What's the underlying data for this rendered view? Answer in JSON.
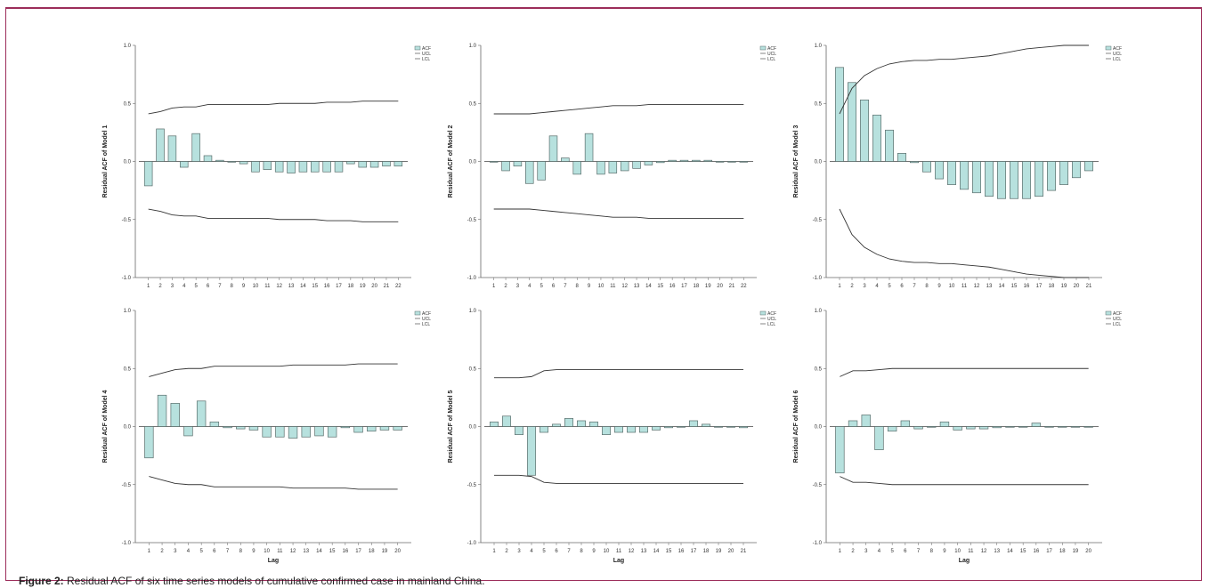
{
  "caption": {
    "label": "Figure 2:",
    "text": " Residual ACF of six time series models of cumulative confirmed case in mainland China."
  },
  "colors": {
    "bar_fill": "#b7e1de",
    "bar_stroke": "#5a6e6c",
    "line": "#333333"
  },
  "chart_data": [
    {
      "type": "bar",
      "ylabel": "Residual ACF of Model 1",
      "xlabel": "",
      "ylim": [
        -1.0,
        1.0
      ],
      "yticks": [
        "1.0",
        "0.5",
        "0.0",
        "-0.5",
        "-1.0"
      ],
      "legend": [
        "ACF",
        "UCL",
        "LCL"
      ],
      "legend_position": "top-right",
      "categories": [
        "1",
        "2",
        "3",
        "4",
        "5",
        "6",
        "7",
        "8",
        "9",
        "10",
        "11",
        "12",
        "13",
        "14",
        "15",
        "16",
        "17",
        "18",
        "19",
        "20",
        "21",
        "22"
      ],
      "series": [
        {
          "name": "ACF",
          "values": [
            -0.21,
            0.28,
            0.22,
            -0.05,
            0.24,
            0.05,
            0.01,
            0.0,
            -0.02,
            -0.09,
            -0.07,
            -0.09,
            -0.1,
            -0.09,
            -0.09,
            -0.09,
            -0.09,
            -0.02,
            -0.05,
            -0.05,
            -0.04,
            -0.04
          ]
        },
        {
          "name": "UCL",
          "values": [
            0.41,
            0.43,
            0.46,
            0.47,
            0.47,
            0.49,
            0.49,
            0.49,
            0.49,
            0.49,
            0.49,
            0.5,
            0.5,
            0.5,
            0.5,
            0.51,
            0.51,
            0.51,
            0.52,
            0.52,
            0.52,
            0.52
          ]
        },
        {
          "name": "LCL",
          "values": [
            -0.41,
            -0.43,
            -0.46,
            -0.47,
            -0.47,
            -0.49,
            -0.49,
            -0.49,
            -0.49,
            -0.49,
            -0.49,
            -0.5,
            -0.5,
            -0.5,
            -0.5,
            -0.51,
            -0.51,
            -0.51,
            -0.52,
            -0.52,
            -0.52,
            -0.52
          ]
        }
      ]
    },
    {
      "type": "bar",
      "ylabel": "Residual ACF of Model 2",
      "xlabel": "",
      "ylim": [
        -1.0,
        1.0
      ],
      "yticks": [
        "1.0",
        "0.5",
        "0.0",
        "-0.5",
        "-1.0"
      ],
      "legend": [
        "ACF",
        "UCL",
        "LCL"
      ],
      "legend_position": "top-right",
      "categories": [
        "1",
        "2",
        "3",
        "4",
        "5",
        "6",
        "7",
        "8",
        "9",
        "10",
        "11",
        "12",
        "13",
        "14",
        "15",
        "16",
        "17",
        "18",
        "19",
        "20",
        "21",
        "22"
      ],
      "series": [
        {
          "name": "ACF",
          "values": [
            0.0,
            -0.08,
            -0.04,
            -0.19,
            -0.16,
            0.22,
            0.03,
            -0.11,
            0.24,
            -0.11,
            -0.1,
            -0.08,
            -0.06,
            -0.03,
            -0.01,
            0.01,
            0.01,
            0.01,
            0.01,
            0.0,
            0.0,
            0.0
          ]
        },
        {
          "name": "UCL",
          "values": [
            0.41,
            0.41,
            0.41,
            0.41,
            0.42,
            0.43,
            0.44,
            0.45,
            0.46,
            0.47,
            0.48,
            0.48,
            0.48,
            0.49,
            0.49,
            0.49,
            0.49,
            0.49,
            0.49,
            0.49,
            0.49,
            0.49
          ]
        },
        {
          "name": "LCL",
          "values": [
            -0.41,
            -0.41,
            -0.41,
            -0.41,
            -0.42,
            -0.43,
            -0.44,
            -0.45,
            -0.46,
            -0.47,
            -0.48,
            -0.48,
            -0.48,
            -0.49,
            -0.49,
            -0.49,
            -0.49,
            -0.49,
            -0.49,
            -0.49,
            -0.49,
            -0.49
          ]
        }
      ]
    },
    {
      "type": "bar",
      "ylabel": "Residual ACF of Model 3",
      "xlabel": "",
      "ylim": [
        -1.0,
        1.0
      ],
      "yticks": [
        "1.0",
        "0.5",
        "0.0",
        "-0.5",
        "-1.0"
      ],
      "legend": [
        "ACF",
        "UCL",
        "LCL"
      ],
      "legend_position": "top-right",
      "categories": [
        "1",
        "2",
        "3",
        "4",
        "5",
        "6",
        "7",
        "8",
        "9",
        "10",
        "11",
        "12",
        "13",
        "14",
        "15",
        "16",
        "17",
        "18",
        "19",
        "20",
        "21"
      ],
      "series": [
        {
          "name": "ACF",
          "values": [
            0.81,
            0.68,
            0.53,
            0.4,
            0.27,
            0.07,
            -0.01,
            -0.09,
            -0.15,
            -0.2,
            -0.24,
            -0.27,
            -0.3,
            -0.32,
            -0.32,
            -0.32,
            -0.3,
            -0.25,
            -0.2,
            -0.14,
            -0.08
          ]
        },
        {
          "name": "UCL",
          "values": [
            0.41,
            0.63,
            0.74,
            0.8,
            0.84,
            0.86,
            0.87,
            0.87,
            0.88,
            0.88,
            0.89,
            0.9,
            0.91,
            0.93,
            0.95,
            0.97,
            0.98,
            0.99,
            1.0,
            1.01,
            1.01
          ]
        },
        {
          "name": "LCL",
          "values": [
            -0.41,
            -0.63,
            -0.74,
            -0.8,
            -0.84,
            -0.86,
            -0.87,
            -0.87,
            -0.88,
            -0.88,
            -0.89,
            -0.9,
            -0.91,
            -0.93,
            -0.95,
            -0.97,
            -0.98,
            -0.99,
            -1.0,
            -1.01,
            -1.01
          ]
        }
      ]
    },
    {
      "type": "bar",
      "ylabel": "Residual ACF of Model 4",
      "xlabel": "Lag",
      "ylim": [
        -1.0,
        1.0
      ],
      "yticks": [
        "1.0",
        "0.5",
        "0.0",
        "-0.5",
        "-1.0"
      ],
      "legend": [
        "ACF",
        "UCL",
        "LCL"
      ],
      "legend_position": "top-right",
      "categories": [
        "1",
        "2",
        "3",
        "4",
        "5",
        "6",
        "7",
        "8",
        "9",
        "10",
        "11",
        "12",
        "13",
        "14",
        "15",
        "16",
        "17",
        "18",
        "19",
        "20"
      ],
      "series": [
        {
          "name": "ACF",
          "values": [
            -0.27,
            0.27,
            0.2,
            -0.08,
            0.22,
            0.04,
            -0.01,
            -0.02,
            -0.03,
            -0.09,
            -0.09,
            -0.1,
            -0.09,
            -0.08,
            -0.09,
            -0.01,
            -0.05,
            -0.04,
            -0.03,
            -0.03
          ]
        },
        {
          "name": "UCL",
          "values": [
            0.43,
            0.46,
            0.49,
            0.5,
            0.5,
            0.52,
            0.52,
            0.52,
            0.52,
            0.52,
            0.52,
            0.53,
            0.53,
            0.53,
            0.53,
            0.53,
            0.54,
            0.54,
            0.54,
            0.54
          ]
        },
        {
          "name": "LCL",
          "values": [
            -0.43,
            -0.46,
            -0.49,
            -0.5,
            -0.5,
            -0.52,
            -0.52,
            -0.52,
            -0.52,
            -0.52,
            -0.52,
            -0.53,
            -0.53,
            -0.53,
            -0.53,
            -0.53,
            -0.54,
            -0.54,
            -0.54,
            -0.54
          ]
        }
      ]
    },
    {
      "type": "bar",
      "ylabel": "Residual ACF of Model 5",
      "xlabel": "Lag",
      "ylim": [
        -1.0,
        1.0
      ],
      "yticks": [
        "1.0",
        "0.5",
        "0.0",
        "-0.5",
        "-1.0"
      ],
      "legend": [
        "ACF",
        "UCL",
        "LCL"
      ],
      "legend_position": "top-right",
      "categories": [
        "1",
        "2",
        "3",
        "4",
        "5",
        "6",
        "7",
        "8",
        "9",
        "10",
        "11",
        "12",
        "13",
        "14",
        "15",
        "16",
        "17",
        "18",
        "19",
        "20",
        "21"
      ],
      "series": [
        {
          "name": "ACF",
          "values": [
            0.04,
            0.09,
            -0.07,
            -0.42,
            -0.05,
            0.02,
            0.07,
            0.05,
            0.04,
            -0.07,
            -0.05,
            -0.05,
            -0.05,
            -0.03,
            -0.01,
            0.0,
            0.05,
            0.02,
            0.0,
            0.0,
            -0.01
          ]
        },
        {
          "name": "UCL",
          "values": [
            0.42,
            0.42,
            0.42,
            0.43,
            0.48,
            0.49,
            0.49,
            0.49,
            0.49,
            0.49,
            0.49,
            0.49,
            0.49,
            0.49,
            0.49,
            0.49,
            0.49,
            0.49,
            0.49,
            0.49,
            0.49
          ]
        },
        {
          "name": "LCL",
          "values": [
            -0.42,
            -0.42,
            -0.42,
            -0.43,
            -0.48,
            -0.49,
            -0.49,
            -0.49,
            -0.49,
            -0.49,
            -0.49,
            -0.49,
            -0.49,
            -0.49,
            -0.49,
            -0.49,
            -0.49,
            -0.49,
            -0.49,
            -0.49,
            -0.49
          ]
        }
      ]
    },
    {
      "type": "bar",
      "ylabel": "Residual ACF of Model 6",
      "xlabel": "Lag",
      "ylim": [
        -1.0,
        1.0
      ],
      "yticks": [
        "1.0",
        "0.5",
        "0.0",
        "-0.5",
        "-1.0"
      ],
      "legend": [
        "ACF",
        "UCL",
        "LCL"
      ],
      "legend_position": "top-right",
      "categories": [
        "1",
        "2",
        "3",
        "4",
        "5",
        "6",
        "7",
        "8",
        "9",
        "10",
        "11",
        "12",
        "13",
        "14",
        "15",
        "16",
        "17",
        "18",
        "19",
        "20"
      ],
      "series": [
        {
          "name": "ACF",
          "values": [
            -0.4,
            0.05,
            0.1,
            -0.2,
            -0.04,
            0.05,
            -0.02,
            0.0,
            0.04,
            -0.03,
            -0.02,
            -0.02,
            -0.01,
            0.0,
            0.0,
            0.03,
            0.0,
            0.0,
            0.0,
            0.0
          ]
        },
        {
          "name": "UCL",
          "values": [
            0.43,
            0.48,
            0.48,
            0.49,
            0.5,
            0.5,
            0.5,
            0.5,
            0.5,
            0.5,
            0.5,
            0.5,
            0.5,
            0.5,
            0.5,
            0.5,
            0.5,
            0.5,
            0.5,
            0.5
          ]
        },
        {
          "name": "LCL",
          "values": [
            -0.43,
            -0.48,
            -0.48,
            -0.49,
            -0.5,
            -0.5,
            -0.5,
            -0.5,
            -0.5,
            -0.5,
            -0.5,
            -0.5,
            -0.5,
            -0.5,
            -0.5,
            -0.5,
            -0.5,
            -0.5,
            -0.5,
            -0.5
          ]
        }
      ]
    }
  ]
}
